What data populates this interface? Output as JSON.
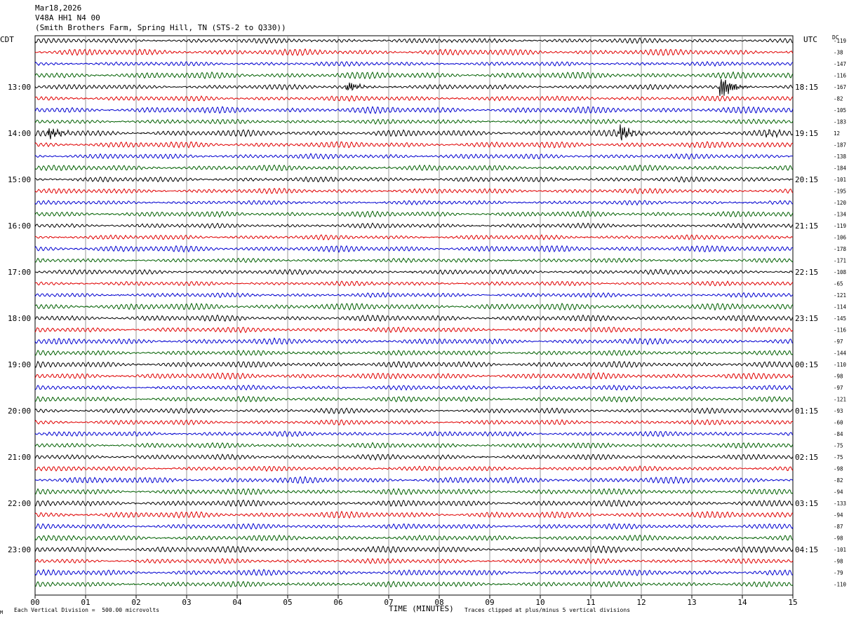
{
  "header": {
    "date": "Mar18,2026",
    "channel": "V48A HH1 N4 00",
    "station": "(Smith Brothers Farm, Spring Hill, TN (STS-2 to Q330))"
  },
  "labels": {
    "left_tz": "CDT",
    "right_tz": "UTC",
    "dc": "DC",
    "xlabel": "TIME (MINUTES)",
    "scale_note": "Each Vertical Division =  500.00 microvolts",
    "clip_note": "Traces clipped at plus/minus 5 vertical divisions",
    "corner": "M"
  },
  "colors": {
    "trace_cycle": [
      "#000000",
      "#e00000",
      "#0000d0",
      "#006000"
    ],
    "grid": "#808080",
    "frame": "#000000"
  },
  "chart_data": {
    "type": "line",
    "title": "Mar18,2026 V48A HH1 N4 00",
    "xlabel": "TIME (MINUTES)",
    "xlim": [
      0,
      15
    ],
    "x_ticks": [
      "00",
      "01",
      "02",
      "03",
      "04",
      "05",
      "06",
      "07",
      "08",
      "09",
      "10",
      "11",
      "12",
      "13",
      "14",
      "15"
    ],
    "row_count": 48,
    "rows_per_hour": 4,
    "left_hour_labels": [
      "13:00",
      "14:00",
      "15:00",
      "16:00",
      "17:00",
      "18:00",
      "19:00",
      "20:00",
      "21:00",
      "22:00",
      "23:00"
    ],
    "left_label_rows": [
      4,
      8,
      12,
      16,
      20,
      24,
      28,
      32,
      36,
      40,
      44
    ],
    "right_hour_labels": [
      "18:15",
      "19:15",
      "20:15",
      "21:15",
      "22:15",
      "23:15",
      "00:15",
      "01:15",
      "02:15",
      "03:15",
      "04:15"
    ],
    "right_label_rows": [
      4,
      8,
      12,
      16,
      20,
      24,
      28,
      32,
      36,
      40,
      44
    ],
    "dc_offsets": [
      "-119",
      "-38",
      "-147",
      "-116",
      "-167",
      "-82",
      "-105",
      "-183",
      "12",
      "-187",
      "-138",
      "-184",
      "-101",
      "-195",
      "-120",
      "-134",
      "-119",
      "-106",
      "-178",
      "-171",
      "-108",
      "-65",
      "-121",
      "-114",
      "-145",
      "-116",
      "-97",
      "-144",
      "-110",
      "-98",
      "-97",
      "-121",
      "-93",
      "-60",
      "-84",
      "-75",
      "-75",
      "-98",
      "-82",
      "-94",
      "-133",
      "-94",
      "-87",
      "-98",
      "-101",
      "-98",
      "-79",
      "-110"
    ],
    "events": [
      {
        "row": 4,
        "minute": 6.2,
        "amplitude": 2.0
      },
      {
        "row": 4,
        "minute": 13.6,
        "amplitude": 4.0
      },
      {
        "row": 8,
        "minute": 0.3,
        "amplitude": 2.0
      },
      {
        "row": 8,
        "minute": 11.6,
        "amplitude": 3.0
      },
      {
        "row": 8,
        "minute": 14.5,
        "amplitude": 1.2
      }
    ],
    "scale_microvolts_per_division": 500.0,
    "clip_divisions": 5
  }
}
